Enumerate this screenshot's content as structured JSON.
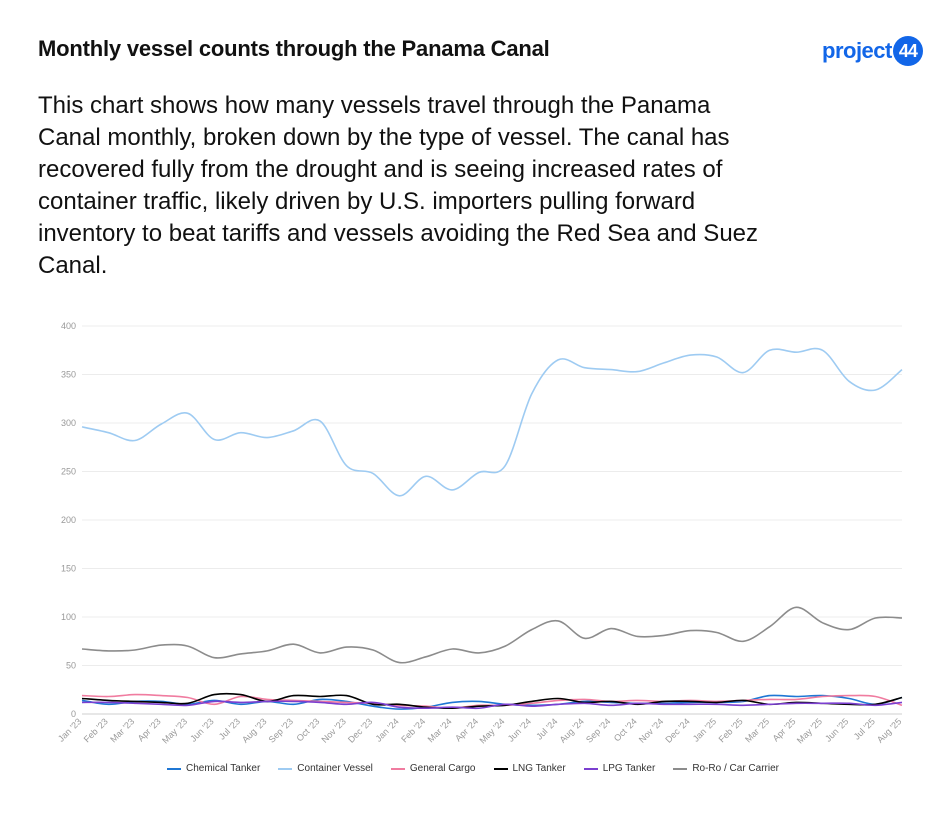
{
  "header": {
    "title": "Monthly vessel counts through the Panama Canal",
    "logo_text": "project",
    "logo_badge": "44"
  },
  "description": "This chart shows how many vessels travel through the Panama Canal monthly, broken down by the type of vessel. The canal has recovered fully from the drought and is seeing increased rates of container traffic, likely driven by U.S. importers pulling forward inventory to beat tariffs and vessels avoiding the Red Sea and Suez Canal.",
  "chart_data": {
    "type": "line",
    "x": [
      "Jan '23",
      "Feb '23",
      "Mar '23",
      "Apr '23",
      "May '23",
      "Jun '23",
      "Jul '23",
      "Aug '23",
      "Sep '23",
      "Oct '23",
      "Nov '23",
      "Dec '23",
      "Jan '24",
      "Feb '24",
      "Mar '24",
      "Apr '24",
      "May '24",
      "Jun '24",
      "Jul '24",
      "Aug '24",
      "Sep '24",
      "Oct '24",
      "Nov '24",
      "Dec '24",
      "Jan '25",
      "Feb '25",
      "Mar '25",
      "Apr '25",
      "May '25",
      "Jun '25",
      "Jul '25",
      "Aug '25"
    ],
    "ylim": [
      0,
      400
    ],
    "yticks": [
      0,
      50,
      100,
      150,
      200,
      250,
      300,
      350,
      400
    ],
    "grid": true,
    "legend": "bottom",
    "series": [
      {
        "name": "Chemical Tanker",
        "color": "#1f77d4",
        "values": [
          14,
          10,
          13,
          13,
          10,
          14,
          10,
          13,
          10,
          15,
          13,
          8,
          5,
          7,
          12,
          13,
          10,
          9,
          10,
          13,
          12,
          11,
          11,
          12,
          12,
          13,
          19,
          18,
          19,
          16,
          10,
          17
        ]
      },
      {
        "name": "Container Vessel",
        "color": "#9ecbf2",
        "values": [
          296,
          290,
          282,
          299,
          310,
          283,
          290,
          285,
          292,
          302,
          256,
          248,
          225,
          245,
          231,
          249,
          256,
          330,
          365,
          357,
          355,
          353,
          362,
          370,
          368,
          352,
          375,
          373,
          375,
          343,
          334,
          355
        ]
      },
      {
        "name": "General Cargo",
        "color": "#f07ca0",
        "values": [
          19,
          18,
          20,
          19,
          17,
          10,
          18,
          15,
          14,
          13,
          12,
          11,
          9,
          8,
          6,
          9,
          9,
          11,
          14,
          15,
          13,
          14,
          13,
          14,
          13,
          14,
          15,
          15,
          18,
          19,
          18,
          9
        ]
      },
      {
        "name": "LNG Tanker",
        "color": "#000000",
        "values": [
          16,
          14,
          13,
          12,
          11,
          20,
          20,
          13,
          19,
          18,
          19,
          10,
          10,
          7,
          6,
          8,
          9,
          13,
          16,
          12,
          13,
          10,
          13,
          13,
          12,
          14,
          10,
          12,
          11,
          10,
          10,
          17
        ]
      },
      {
        "name": "LPG Tanker",
        "color": "#7b3fd0",
        "values": [
          12,
          12,
          11,
          10,
          9,
          13,
          12,
          13,
          13,
          12,
          10,
          12,
          7,
          6,
          7,
          6,
          10,
          8,
          10,
          11,
          9,
          11,
          10,
          10,
          10,
          9,
          10,
          11,
          11,
          11,
          9,
          12
        ]
      },
      {
        "name": "Ro-Ro / Car Carrier",
        "color": "#8c8c8c",
        "values": [
          67,
          65,
          66,
          71,
          70,
          58,
          62,
          65,
          72,
          63,
          69,
          66,
          53,
          59,
          67,
          63,
          70,
          87,
          96,
          78,
          88,
          80,
          81,
          86,
          84,
          75,
          90,
          110,
          94,
          87,
          99,
          99
        ]
      }
    ]
  }
}
